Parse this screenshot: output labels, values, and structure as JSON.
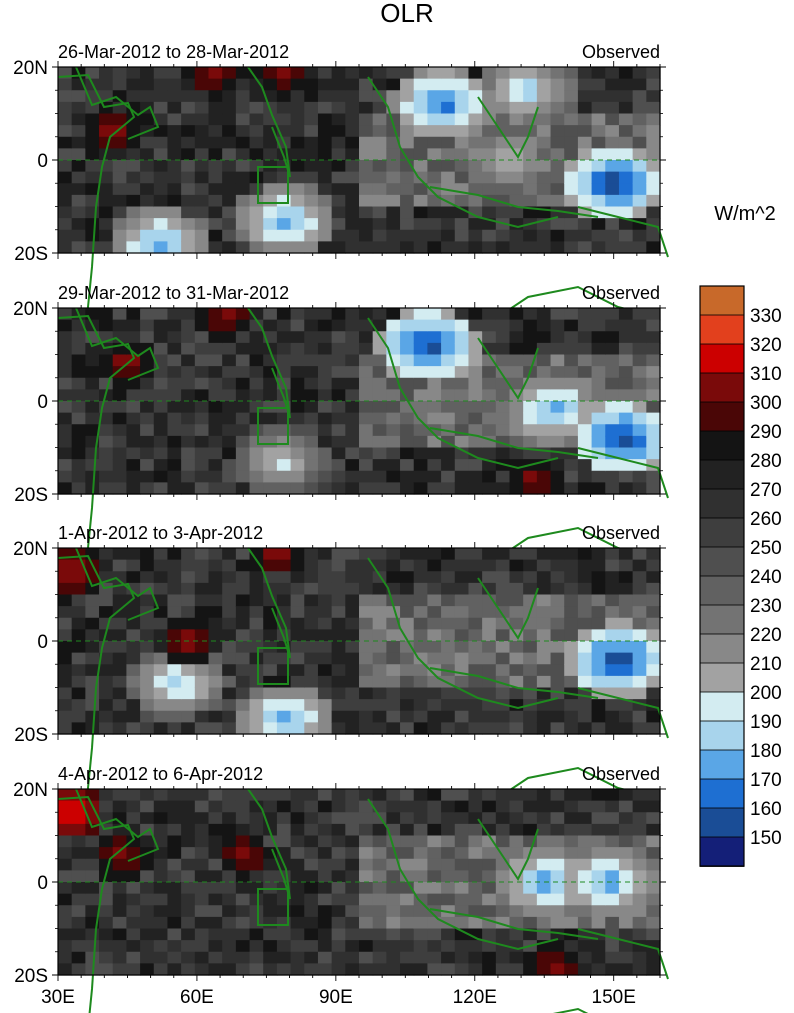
{
  "title": "OLR",
  "units": "W/m^2",
  "panel_tag": "Observed",
  "panels": [
    {
      "date_range": "26-Mar-2012 to 28-Mar-2012"
    },
    {
      "date_range": "29-Mar-2012 to 31-Mar-2012"
    },
    {
      "date_range": "1-Apr-2012 to 3-Apr-2012"
    },
    {
      "date_range": "4-Apr-2012 to 6-Apr-2012"
    }
  ],
  "lat_ticks": [
    {
      "value": 20,
      "label": "20N"
    },
    {
      "value": 0,
      "label": "0"
    },
    {
      "value": -20,
      "label": "20S"
    }
  ],
  "lon_ticks": [
    {
      "value": 30,
      "label": "30E"
    },
    {
      "value": 60,
      "label": "60E"
    },
    {
      "value": 90,
      "label": "90E"
    },
    {
      "value": 120,
      "label": "120E"
    },
    {
      "value": 150,
      "label": "150E"
    }
  ],
  "colorbar": {
    "levels": [
      "330",
      "320",
      "310",
      "300",
      "290",
      "280",
      "270",
      "260",
      "250",
      "240",
      "230",
      "220",
      "210",
      "200",
      "190",
      "180",
      "170",
      "160",
      "150"
    ],
    "colors": [
      "#c8692a",
      "#e2401d",
      "#cc0000",
      "#7a0a0a",
      "#4a0606",
      "#141414",
      "#222222",
      "#303030",
      "#3e3e3e",
      "#4f4f4f",
      "#616161",
      "#737373",
      "#888888",
      "#a2a2a2",
      "#d3ecf1",
      "#a8d4ec",
      "#5aa6e6",
      "#1e6fd2",
      "#1a4d96",
      "#141f78"
    ]
  },
  "map_colors": {
    "coast": "#1e8a1e",
    "bg": "#2e2e2e"
  },
  "chart_data": {
    "type": "heatmap",
    "title": "OLR",
    "lon_range": [
      30,
      160
    ],
    "lat_range": [
      -20,
      20
    ],
    "panels": [
      {
        "date_range": "26-Mar-2012 to 28-Mar-2012",
        "low_olr_regions": [
          {
            "lon": 113,
            "lat": 12,
            "min": 160
          },
          {
            "lon": 131,
            "lat": 15,
            "min": 180
          },
          {
            "lon": 150,
            "lat": -5,
            "min": 150
          },
          {
            "lon": 127,
            "lat": 0,
            "min": 190
          },
          {
            "lon": 79,
            "lat": -13,
            "min": 170
          },
          {
            "lon": 52,
            "lat": -18,
            "min": 170
          }
        ],
        "high_olr_regions": [
          {
            "lon": 42,
            "lat": 6,
            "max": 310
          },
          {
            "lon": 78,
            "lat": 19,
            "max": 310
          },
          {
            "lon": 63,
            "lat": 19,
            "max": 310
          }
        ]
      },
      {
        "date_range": "29-Mar-2012 to 31-Mar-2012",
        "low_olr_regions": [
          {
            "lon": 110,
            "lat": 12,
            "min": 150
          },
          {
            "lon": 152,
            "lat": -8,
            "min": 150
          },
          {
            "lon": 137,
            "lat": -2,
            "min": 170
          },
          {
            "lon": 78,
            "lat": -13,
            "min": 190
          }
        ],
        "high_olr_regions": [
          {
            "lon": 45,
            "lat": 8,
            "max": 310
          },
          {
            "lon": 66,
            "lat": 18,
            "max": 310
          },
          {
            "lon": 133,
            "lat": -17,
            "max": 310
          }
        ]
      },
      {
        "date_range": "1-Apr-2012 to 3-Apr-2012",
        "low_olr_regions": [
          {
            "lon": 151,
            "lat": -4,
            "min": 150
          },
          {
            "lon": 79,
            "lat": -17,
            "min": 170
          },
          {
            "lon": 56,
            "lat": -9,
            "min": 180
          }
        ],
        "high_olr_regions": [
          {
            "lon": 33,
            "lat": 15,
            "max": 320
          },
          {
            "lon": 77,
            "lat": 19,
            "max": 310
          },
          {
            "lon": 58,
            "lat": 0,
            "max": 310
          }
        ]
      },
      {
        "date_range": "4-Apr-2012 to 6-Apr-2012",
        "low_olr_regions": [
          {
            "lon": 135,
            "lat": 0,
            "min": 170
          },
          {
            "lon": 149,
            "lat": 0,
            "min": 170
          }
        ],
        "high_olr_regions": [
          {
            "lon": 33,
            "lat": 15,
            "max": 330
          },
          {
            "lon": 44,
            "lat": 6,
            "max": 310
          },
          {
            "lon": 70,
            "lat": 6,
            "max": 310
          },
          {
            "lon": 137,
            "lat": -18,
            "max": 310
          }
        ]
      }
    ]
  }
}
